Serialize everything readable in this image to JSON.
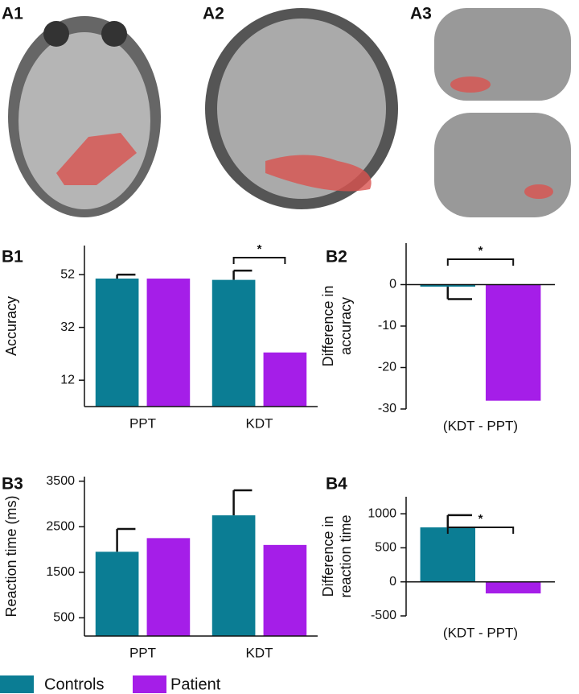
{
  "image_panel_labels": [
    "A1",
    "A2",
    "A3"
  ],
  "chart_data": [
    {
      "type": "bar",
      "label": "B1",
      "ylabel": [
        "Accuracy"
      ],
      "categories": [
        "PPT",
        "KDT"
      ],
      "series": [
        {
          "name": "Controls",
          "color": "#0b7d94",
          "values": [
            50.5,
            50
          ],
          "errors": [
            1.5,
            3.5
          ]
        },
        {
          "name": "Patient",
          "color": "#a51ee8",
          "values": [
            50.5,
            22.5
          ]
        }
      ],
      "ylim": [
        2,
        63
      ],
      "yticks": [
        12,
        32,
        52
      ],
      "annotations": [
        "*"
      ]
    },
    {
      "type": "bar",
      "label": "B2",
      "ylabel": [
        "Difference in",
        "accuracy"
      ],
      "categories": [
        "(KDT - PPT)"
      ],
      "series": [
        {
          "name": "Controls",
          "color": "#0b7d94",
          "values": [
            -0.5
          ],
          "errors": [
            3
          ]
        },
        {
          "name": "Patient",
          "color": "#a51ee8",
          "values": [
            -28
          ]
        }
      ],
      "ylim": [
        -30,
        10
      ],
      "yticks": [
        0,
        -10,
        -20,
        -30
      ],
      "annotations": [
        "*"
      ]
    },
    {
      "type": "bar",
      "label": "B3",
      "ylabel": [
        "Reaction time (ms)"
      ],
      "categories": [
        "PPT",
        "KDT"
      ],
      "series": [
        {
          "name": "Controls",
          "color": "#0b7d94",
          "values": [
            1950,
            2750
          ],
          "errors": [
            500,
            550
          ]
        },
        {
          "name": "Patient",
          "color": "#a51ee8",
          "values": [
            2250,
            2100
          ]
        }
      ],
      "ylim": [
        100,
        3600
      ],
      "yticks": [
        500,
        1500,
        2500,
        3500
      ]
    },
    {
      "type": "bar",
      "label": "B4",
      "ylabel": [
        "Difference in",
        "reaction time"
      ],
      "categories": [
        "(KDT - PPT)"
      ],
      "series": [
        {
          "name": "Controls",
          "color": "#0b7d94",
          "values": [
            800
          ],
          "errors": [
            180
          ]
        },
        {
          "name": "Patient",
          "color": "#a51ee8",
          "values": [
            -170
          ]
        }
      ],
      "ylim": [
        -500,
        1250
      ],
      "yticks": [
        1000,
        500,
        0,
        -500
      ],
      "annotations": [
        "*"
      ]
    }
  ]
}
